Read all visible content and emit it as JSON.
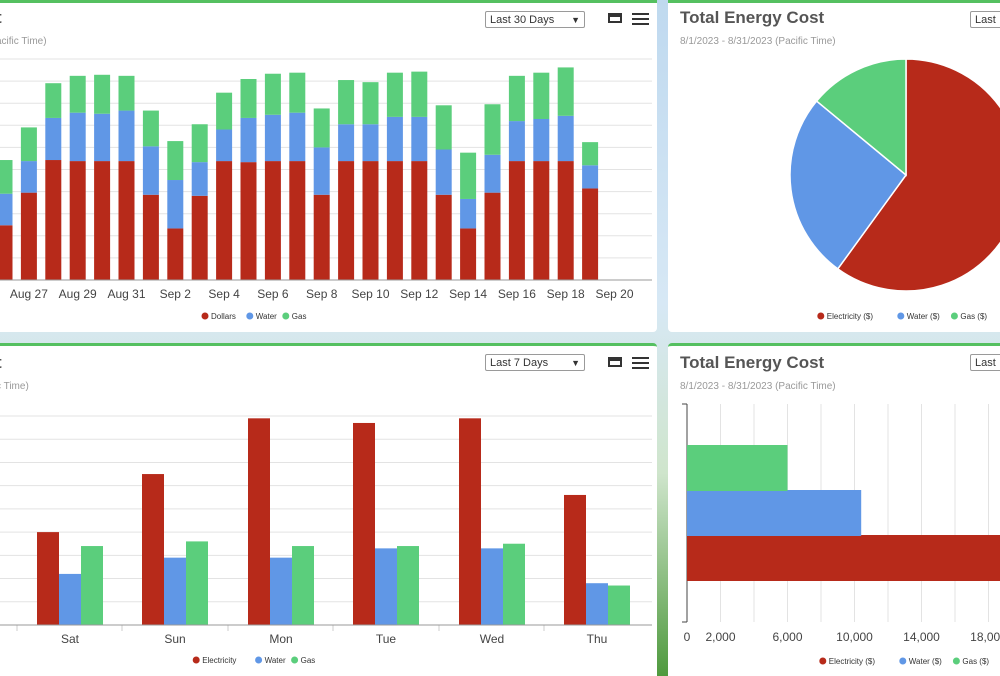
{
  "colors": {
    "electricity": "#b72a1a",
    "water": "#6097e6",
    "gas": "#5bce7c",
    "accent": "#55c060"
  },
  "panels": {
    "p1": {
      "title": "t",
      "subtitle": "acific Time)",
      "range": "Last 30 Days"
    },
    "p2": {
      "title": "Total Energy Cost",
      "subtitle": "8/1/2023 - 8/31/2023 (Pacific Time)",
      "range": "Last"
    },
    "p3": {
      "title": "t",
      "subtitle": "c Time)",
      "range": "Last 7 Days"
    },
    "p4": {
      "title": "Total Energy Cost",
      "subtitle": "8/1/2023 - 8/31/2023 (Pacific Time)",
      "range": "Last"
    }
  },
  "chart_data": [
    {
      "type": "bar",
      "stacked": true,
      "x_tick_labels": [
        "Aug 27",
        "Aug 29",
        "Aug 31",
        "Sep 2",
        "Sep 4",
        "Sep 6",
        "Sep 8",
        "Sep 10",
        "Sep 12",
        "Sep 14",
        "Sep 16",
        "Sep 18",
        "Sep 20"
      ],
      "ylim": [
        0,
        210
      ],
      "grid": true,
      "legend": "bottom",
      "series": [
        {
          "name": "Dollars",
          "values": [
            52,
            83,
            114,
            113,
            113,
            113,
            81,
            49,
            80,
            113,
            112,
            113,
            113,
            81,
            113,
            113,
            113,
            113,
            81,
            49,
            83,
            113,
            113,
            113,
            87
          ]
        },
        {
          "name": "Water",
          "values": [
            30,
            30,
            40,
            46,
            45,
            48,
            46,
            46,
            32,
            30,
            42,
            44,
            46,
            45,
            35,
            35,
            42,
            42,
            43,
            28,
            36,
            38,
            40,
            43,
            22
          ]
        },
        {
          "name": "Gas",
          "values": [
            32,
            32,
            33,
            35,
            37,
            33,
            34,
            37,
            36,
            35,
            37,
            39,
            38,
            37,
            42,
            40,
            42,
            43,
            42,
            44,
            48,
            43,
            44,
            46,
            22
          ]
        }
      ]
    },
    {
      "type": "pie",
      "title": "Total Energy Cost",
      "legend": "bottom",
      "labels": [
        "Electricity ($)",
        "Water ($)",
        "Gas ($)"
      ],
      "values": [
        60,
        26,
        14
      ]
    },
    {
      "type": "bar",
      "categories": [
        "Sat",
        "Sun",
        "Mon",
        "Tue",
        "Wed",
        "Thu"
      ],
      "ylim": [
        0,
        90
      ],
      "grid": true,
      "legend": "bottom",
      "series": [
        {
          "name": "Electricity",
          "values": [
            40,
            65,
            89,
            87,
            89,
            56
          ]
        },
        {
          "name": "Water",
          "values": [
            22,
            29,
            29,
            33,
            33,
            18
          ]
        },
        {
          "name": "Gas",
          "values": [
            34,
            36,
            34,
            34,
            35,
            17
          ]
        }
      ]
    },
    {
      "type": "bar",
      "orientation": "horizontal",
      "title": "Total Energy Cost",
      "x_tick_labels": [
        "0",
        "2,000",
        "6,000",
        "10,000",
        "14,000",
        "18,000"
      ],
      "xlim": [
        0,
        19500
      ],
      "grid": true,
      "legend": "bottom",
      "series": [
        {
          "name": "Electricity ($)",
          "values": [
            19500
          ]
        },
        {
          "name": "Water ($)",
          "values": [
            10400
          ]
        },
        {
          "name": "Gas ($)",
          "values": [
            6000
          ]
        }
      ]
    }
  ]
}
